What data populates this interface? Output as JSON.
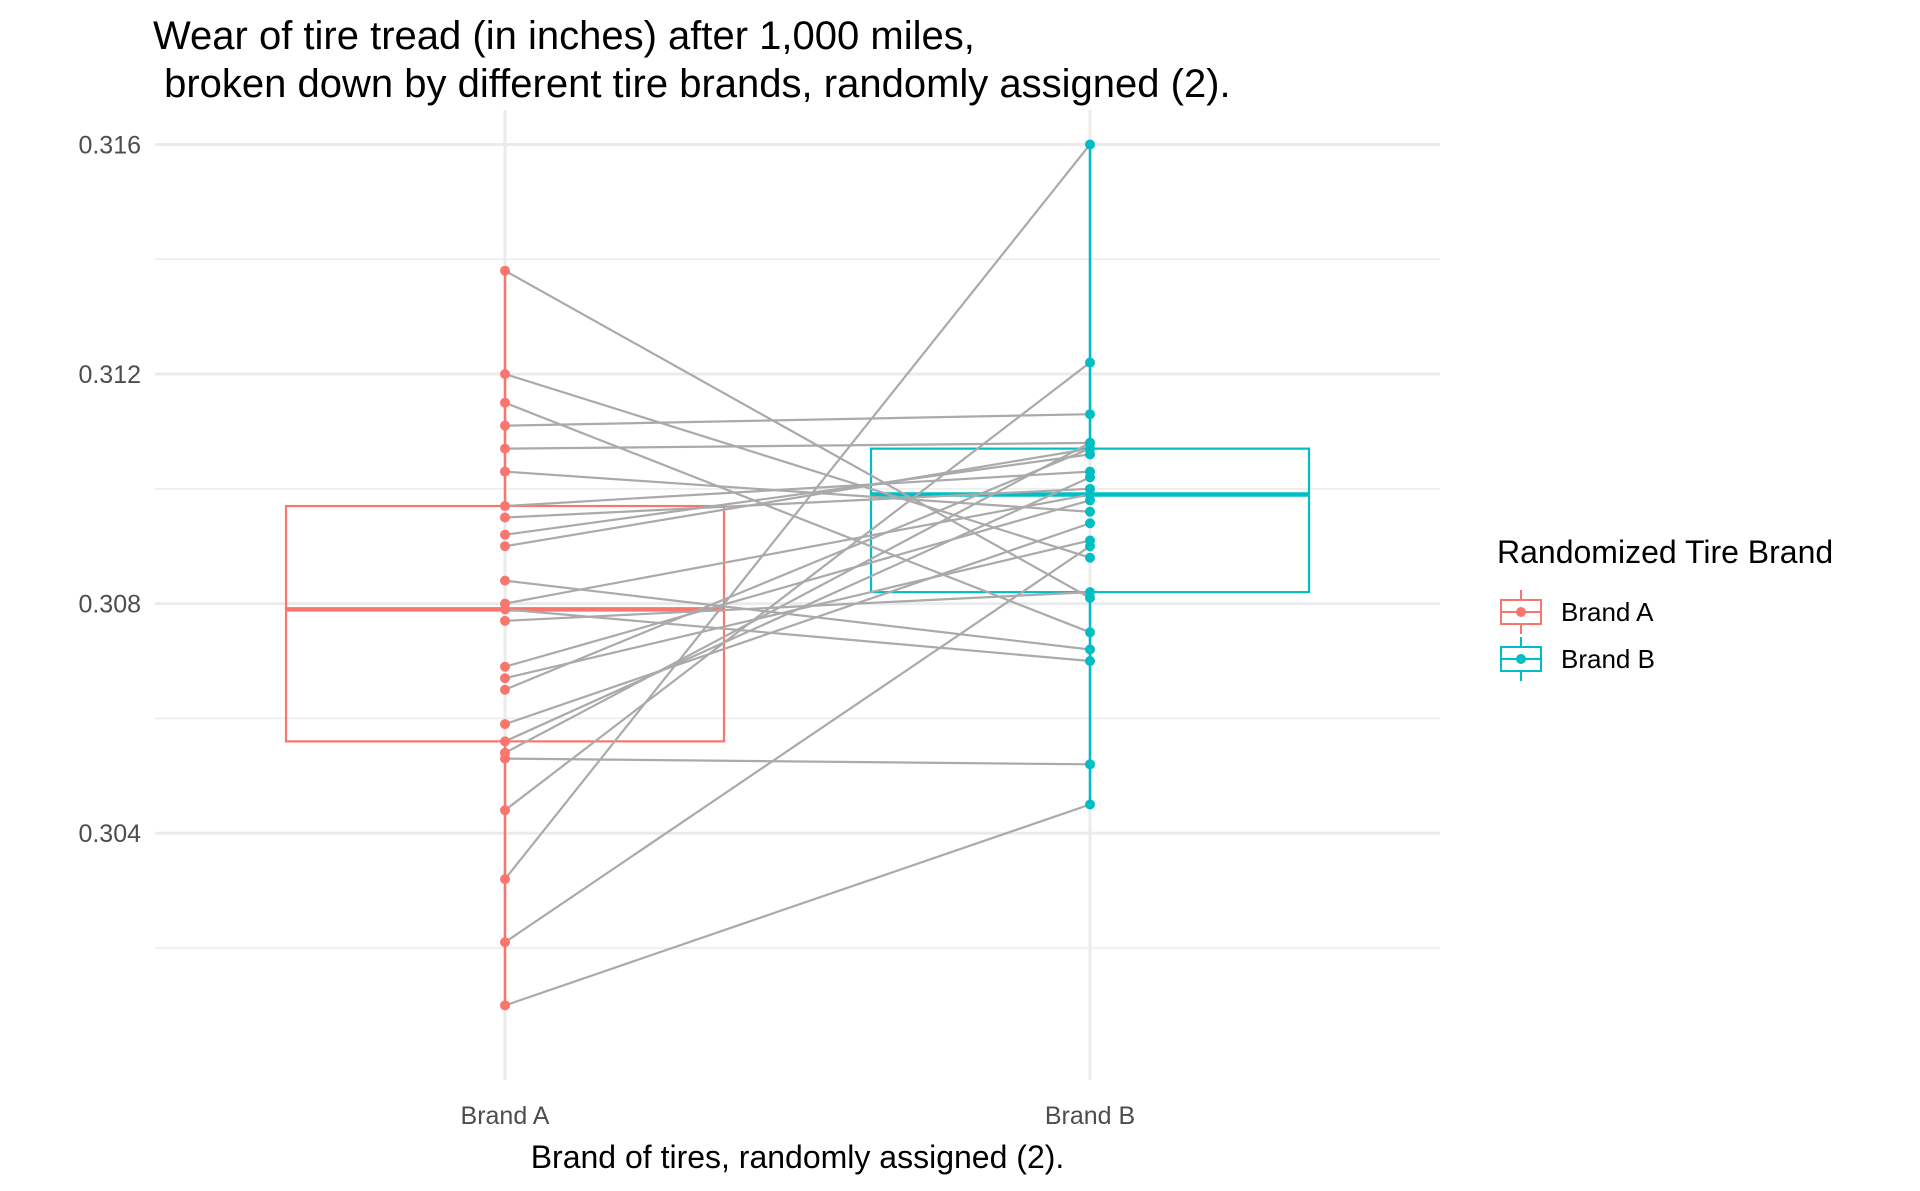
{
  "chart_data": {
    "type": "box",
    "title_line1": "Wear of tire tread (in inches) after 1,000 miles,",
    "title_line2": " broken down by different tire brands, randomly assigned (2).",
    "xlabel": "Brand of tires, randomly assigned (2).",
    "ylabel": "",
    "categories": [
      "Brand A",
      "Brand B"
    ],
    "ylim": [
      0.2997,
      0.3166
    ],
    "yticks": [
      0.304,
      0.308,
      0.312,
      0.316
    ],
    "ytick_labels": [
      "0.304",
      "0.308",
      "0.312",
      "0.316"
    ],
    "grid": true,
    "legend": {
      "title": "Randomized Tire Brand",
      "position": "right",
      "entries": [
        "Brand A",
        "Brand B"
      ]
    },
    "colors": {
      "Brand A": "#F8766D",
      "Brand B": "#00BFC4",
      "pair_line": "#AAAAAA",
      "grid": "#EBEBEB"
    },
    "boxes": [
      {
        "name": "Brand A",
        "min": 0.301,
        "q1": 0.3056,
        "median": 0.3079,
        "q3": 0.3097,
        "max": 0.3138
      },
      {
        "name": "Brand B",
        "min": 0.3045,
        "q1": 0.3082,
        "median": 0.3099,
        "q3": 0.3107,
        "max": 0.316
      }
    ],
    "pairs": [
      {
        "a": 0.3138,
        "b": 0.3081
      },
      {
        "a": 0.312,
        "b": 0.3088
      },
      {
        "a": 0.3115,
        "b": 0.3075
      },
      {
        "a": 0.3111,
        "b": 0.3113
      },
      {
        "a": 0.3107,
        "b": 0.3108
      },
      {
        "a": 0.3103,
        "b": 0.3096
      },
      {
        "a": 0.3097,
        "b": 0.3103
      },
      {
        "a": 0.3095,
        "b": 0.31
      },
      {
        "a": 0.3092,
        "b": 0.3106
      },
      {
        "a": 0.309,
        "b": 0.3107
      },
      {
        "a": 0.3084,
        "b": 0.3072
      },
      {
        "a": 0.308,
        "b": 0.3099
      },
      {
        "a": 0.3079,
        "b": 0.307
      },
      {
        "a": 0.3077,
        "b": 0.3082
      },
      {
        "a": 0.3069,
        "b": 0.3098
      },
      {
        "a": 0.3067,
        "b": 0.3091
      },
      {
        "a": 0.3065,
        "b": 0.3107
      },
      {
        "a": 0.3059,
        "b": 0.3094
      },
      {
        "a": 0.3056,
        "b": 0.3102
      },
      {
        "a": 0.3054,
        "b": 0.3108
      },
      {
        "a": 0.3053,
        "b": 0.3052
      },
      {
        "a": 0.3044,
        "b": 0.3122
      },
      {
        "a": 0.3032,
        "b": 0.316
      },
      {
        "a": 0.3021,
        "b": 0.309
      },
      {
        "a": 0.301,
        "b": 0.3045
      }
    ]
  }
}
